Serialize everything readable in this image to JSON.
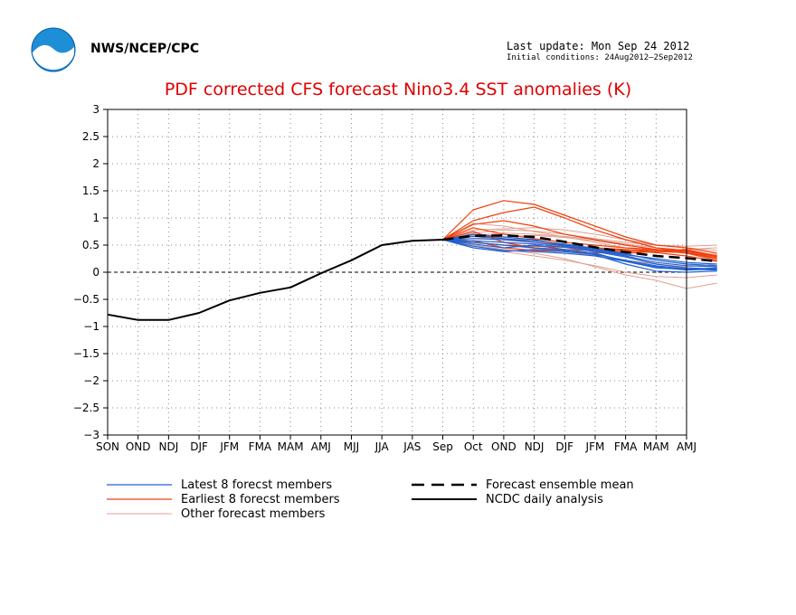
{
  "header": {
    "agency": "NWS/NCEP/CPC",
    "last_update": "Last update: Mon Sep 24 2012",
    "initial_conditions": "Initial conditions: 24Aug2012–2Sep2012",
    "logo_text": "NOAA"
  },
  "colors": {
    "title": "#e00000",
    "latest": "#2060d0",
    "earliest": "#f04010",
    "other": "#e0a090",
    "analysis": "#000000",
    "mean": "#000000"
  },
  "chart_data": {
    "type": "line",
    "title": "PDF corrected CFS forecast Nino3.4 SST anomalies (K)",
    "categories": [
      "SON",
      "OND",
      "NDJ",
      "DJF",
      "JFM",
      "FMA",
      "MAM",
      "AMJ",
      "MJJ",
      "JJA",
      "JAS",
      "Sep",
      "Oct",
      "OND",
      "NDJ",
      "DJF",
      "JFM",
      "FMA",
      "MAM",
      "AMJ"
    ],
    "ylim": [
      -3,
      3
    ],
    "yticks": [
      3,
      2.5,
      2,
      1.5,
      1,
      0.5,
      0,
      -0.5,
      -1,
      -1.5,
      -2,
      -2.5,
      -3
    ],
    "grid": true,
    "legend": [
      {
        "label": "Latest 8 forecst members",
        "style": "latest"
      },
      {
        "label": "Forecast ensemble mean",
        "style": "mean"
      },
      {
        "label": "Earliest 8 forecst members",
        "style": "earliest"
      },
      {
        "label": "NCDC daily analysis",
        "style": "analysis"
      },
      {
        "label": "Other forecast members",
        "style": "other"
      }
    ],
    "analysis": {
      "start_index": 0,
      "values": [
        -0.78,
        -0.88,
        -0.88,
        -0.75,
        -0.52,
        -0.38,
        -0.28,
        -0.02,
        0.22,
        0.5,
        0.58,
        0.6
      ]
    },
    "ensemble_mean": {
      "start_index": 11,
      "values": [
        0.6,
        0.67,
        0.68,
        0.65,
        0.56,
        0.46,
        0.37,
        0.3,
        0.26,
        0.2
      ]
    },
    "members": {
      "start_index": 11,
      "latest": [
        [
          0.6,
          0.55,
          0.5,
          0.45,
          0.4,
          0.32,
          0.15,
          0.02,
          0.0,
          0.02
        ],
        [
          0.6,
          0.52,
          0.45,
          0.5,
          0.42,
          0.35,
          0.2,
          0.08,
          0.05,
          0.08
        ],
        [
          0.6,
          0.62,
          0.6,
          0.55,
          0.48,
          0.4,
          0.3,
          0.18,
          0.12,
          0.1
        ],
        [
          0.6,
          0.48,
          0.4,
          0.38,
          0.35,
          0.3,
          0.2,
          0.1,
          0.04,
          0.06
        ],
        [
          0.6,
          0.7,
          0.65,
          0.6,
          0.5,
          0.42,
          0.32,
          0.25,
          0.18,
          0.15
        ],
        [
          0.6,
          0.58,
          0.55,
          0.52,
          0.46,
          0.38,
          0.28,
          0.15,
          0.08,
          0.06
        ],
        [
          0.6,
          0.45,
          0.38,
          0.42,
          0.38,
          0.33,
          0.22,
          0.12,
          0.06,
          0.04
        ],
        [
          0.6,
          0.66,
          0.62,
          0.58,
          0.52,
          0.44,
          0.34,
          0.22,
          0.15,
          0.12
        ]
      ],
      "earliest": [
        [
          0.6,
          1.15,
          1.32,
          1.25,
          1.05,
          0.85,
          0.65,
          0.5,
          0.45,
          0.35
        ],
        [
          0.6,
          0.95,
          1.1,
          1.2,
          1.0,
          0.78,
          0.6,
          0.45,
          0.4,
          0.3
        ],
        [
          0.6,
          0.75,
          0.55,
          0.45,
          0.42,
          0.4,
          0.38,
          0.4,
          0.42,
          0.3
        ],
        [
          0.6,
          0.82,
          0.7,
          0.62,
          0.55,
          0.5,
          0.45,
          0.42,
          0.4,
          0.28
        ],
        [
          0.6,
          0.58,
          0.45,
          0.4,
          0.38,
          0.36,
          0.35,
          0.38,
          0.36,
          0.25
        ],
        [
          0.6,
          0.88,
          0.95,
          0.85,
          0.7,
          0.6,
          0.5,
          0.42,
          0.35,
          0.22
        ],
        [
          0.6,
          0.55,
          0.5,
          0.48,
          0.46,
          0.44,
          0.4,
          0.36,
          0.3,
          0.2
        ],
        [
          0.6,
          0.7,
          0.62,
          0.55,
          0.5,
          0.45,
          0.42,
          0.4,
          0.38,
          0.26
        ]
      ],
      "other": [
        [
          0.6,
          0.9,
          0.85,
          0.75,
          0.65,
          0.55,
          0.45,
          0.4,
          0.42,
          0.45
        ],
        [
          0.6,
          0.78,
          0.8,
          0.82,
          0.78,
          0.7,
          0.6,
          0.5,
          0.45,
          0.4
        ],
        [
          0.6,
          0.5,
          0.42,
          0.35,
          0.25,
          0.1,
          -0.05,
          -0.15,
          -0.3,
          -0.2
        ],
        [
          0.6,
          0.68,
          0.72,
          0.7,
          0.66,
          0.6,
          0.52,
          0.45,
          0.38,
          0.32
        ],
        [
          0.6,
          0.45,
          0.38,
          0.3,
          0.22,
          0.12,
          0.0,
          -0.08,
          -0.1,
          -0.05
        ],
        [
          0.6,
          0.72,
          0.78,
          0.76,
          0.7,
          0.62,
          0.55,
          0.5,
          0.48,
          0.5
        ],
        [
          0.6,
          0.62,
          0.65,
          0.68,
          0.64,
          0.58,
          0.5,
          0.42,
          0.35,
          0.3
        ],
        [
          0.6,
          0.55,
          0.5,
          0.44,
          0.38,
          0.3,
          0.22,
          0.15,
          0.1,
          0.15
        ]
      ]
    }
  }
}
